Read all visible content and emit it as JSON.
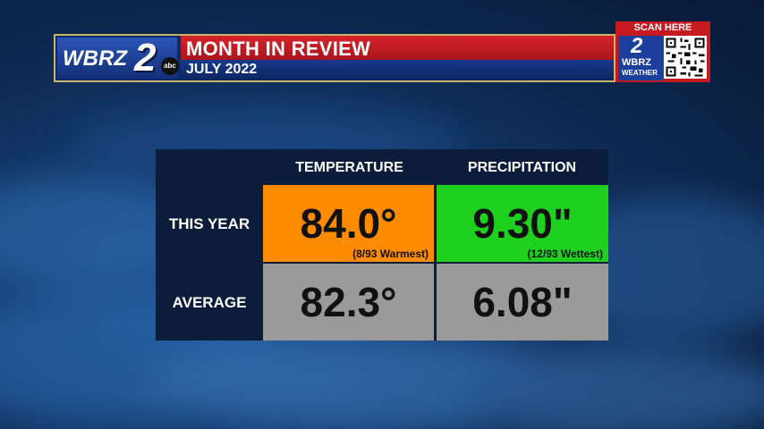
{
  "banner": {
    "logo_text": "WBRZ",
    "logo_number": "2",
    "network": "abc",
    "title": "MONTH IN REVIEW",
    "subtitle": "JULY 2022"
  },
  "qr_widget": {
    "label": "SCAN HERE",
    "logo_number": "2",
    "logo_text": "WBRZ",
    "logo_sub": "WEATHER"
  },
  "table": {
    "columns": [
      "TEMPERATURE",
      "PRECIPITATION"
    ],
    "rows": [
      {
        "label": "THIS YEAR",
        "temperature": {
          "value": "84.0°",
          "note": "(8/93 Warmest)"
        },
        "precipitation": {
          "value": "9.30\"",
          "note": "(12/93 Wettest)"
        }
      },
      {
        "label": "AVERAGE",
        "temperature": {
          "value": "82.3°"
        },
        "precipitation": {
          "value": "6.08\""
        }
      }
    ]
  },
  "colors": {
    "above_normal_temp": "#ff8c00",
    "above_normal_precip": "#1ed11e",
    "average": "#9a9a9a"
  }
}
